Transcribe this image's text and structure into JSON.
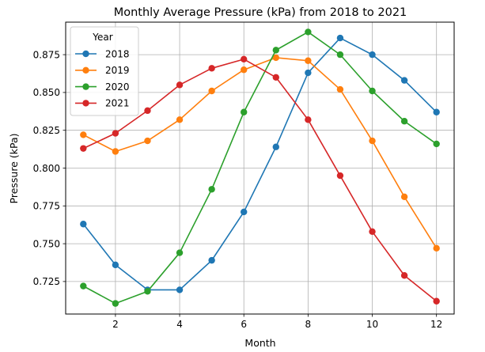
{
  "chart_data": {
    "type": "line",
    "title": "Monthly Average Pressure (kPa) from 2018 to 2021",
    "xlabel": "Month",
    "ylabel": "Pressure (kPa)",
    "xlim": [
      0.45,
      12.55
    ],
    "ylim": [
      0.7035,
      0.8965
    ],
    "x_ticks": [
      2,
      4,
      6,
      8,
      10,
      12
    ],
    "y_ticks": [
      0.725,
      0.75,
      0.775,
      0.8,
      0.825,
      0.85,
      0.875
    ],
    "y_tick_labels": [
      "0.725",
      "0.750",
      "0.775",
      "0.800",
      "0.825",
      "0.850",
      "0.875"
    ],
    "grid": true,
    "legend": {
      "title": "Year",
      "placement": "upper-left"
    },
    "x": [
      1,
      2,
      3,
      4,
      5,
      6,
      7,
      8,
      9,
      10,
      11,
      12
    ],
    "series": [
      {
        "name": "2018",
        "color": "#1f77b4",
        "values": [
          0.763,
          0.736,
          0.7195,
          0.7195,
          0.739,
          0.771,
          0.814,
          0.863,
          0.886,
          0.875,
          0.858,
          0.837
        ]
      },
      {
        "name": "2019",
        "color": "#ff7f0e",
        "values": [
          0.822,
          0.811,
          0.818,
          0.832,
          0.851,
          0.865,
          0.873,
          0.871,
          0.852,
          0.818,
          0.781,
          0.747
        ]
      },
      {
        "name": "2020",
        "color": "#2ca02c",
        "values": [
          0.722,
          0.7105,
          0.7185,
          0.744,
          0.786,
          0.837,
          0.878,
          0.89,
          0.875,
          0.851,
          0.831,
          0.816
        ]
      },
      {
        "name": "2021",
        "color": "#d62728",
        "values": [
          0.813,
          0.823,
          0.838,
          0.855,
          0.866,
          0.872,
          0.86,
          0.832,
          0.795,
          0.758,
          0.729,
          0.712
        ]
      }
    ]
  }
}
